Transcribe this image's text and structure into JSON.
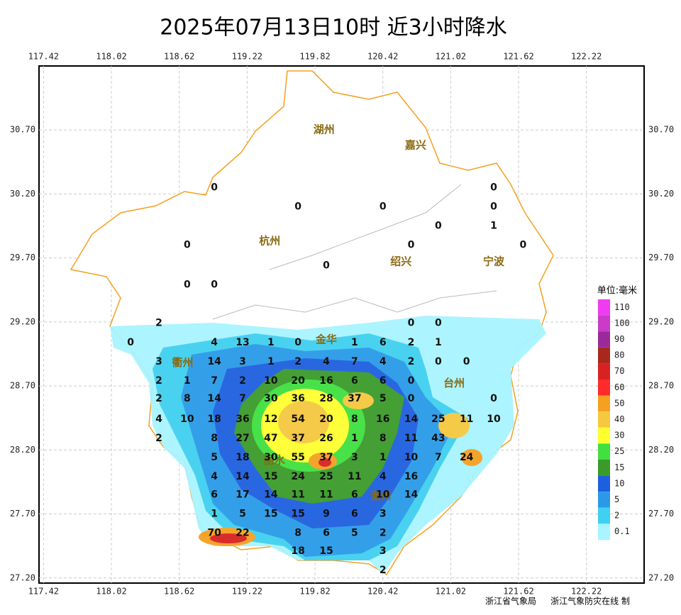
{
  "title": "2025年07月13日10时  近3小时降水",
  "xlim": [
    117.38,
    122.73
  ],
  "ylim": [
    27.16,
    31.2
  ],
  "xticks": [
    117.42,
    118.02,
    118.62,
    119.22,
    119.82,
    120.42,
    121.02,
    121.62,
    122.22
  ],
  "yticks": [
    {
      "value": 30.7,
      "label": "30.70"
    },
    {
      "value": 30.2,
      "label": "30.20"
    },
    {
      "value": 29.7,
      "label": "29.70"
    },
    {
      "value": 29.2,
      "label": "29.20"
    },
    {
      "value": 28.7,
      "label": "28.70"
    },
    {
      "value": 28.2,
      "label": "28.20"
    },
    {
      "value": 27.7,
      "label": "27.70"
    },
    {
      "value": 27.2,
      "label": "27.20"
    }
  ],
  "cities": [
    {
      "name": "湖州",
      "lon": 119.9,
      "lat": 30.7
    },
    {
      "name": "嘉兴",
      "lon": 120.71,
      "lat": 30.58
    },
    {
      "name": "杭州",
      "lon": 119.42,
      "lat": 29.83
    },
    {
      "name": "绍兴",
      "lon": 120.58,
      "lat": 29.67
    },
    {
      "name": "宁波",
      "lon": 121.4,
      "lat": 29.67
    },
    {
      "name": "金华",
      "lon": 119.92,
      "lat": 29.06
    },
    {
      "name": "衢州",
      "lon": 118.65,
      "lat": 28.88
    },
    {
      "name": "台州",
      "lon": 121.05,
      "lat": 28.72
    },
    {
      "name": "丽水",
      "lon": 119.46,
      "lat": 28.12
    },
    {
      "name": "温州",
      "lon": 120.4,
      "lat": 27.84
    }
  ],
  "stations": [
    {
      "lon": 118.93,
      "lat": 30.25,
      "value": 0
    },
    {
      "lon": 121.4,
      "lat": 30.25,
      "value": 0
    },
    {
      "lon": 119.67,
      "lat": 30.1,
      "value": 0
    },
    {
      "lon": 120.42,
      "lat": 30.1,
      "value": 0
    },
    {
      "lon": 121.4,
      "lat": 30.1,
      "value": 0
    },
    {
      "lon": 120.91,
      "lat": 29.95,
      "value": 0
    },
    {
      "lon": 121.4,
      "lat": 29.95,
      "value": 1
    },
    {
      "lon": 118.69,
      "lat": 29.8,
      "value": 0
    },
    {
      "lon": 120.67,
      "lat": 29.8,
      "value": 0
    },
    {
      "lon": 121.66,
      "lat": 29.8,
      "value": 0
    },
    {
      "lon": 119.92,
      "lat": 29.64,
      "value": 0
    },
    {
      "lon": 118.69,
      "lat": 29.49,
      "value": 0
    },
    {
      "lon": 118.93,
      "lat": 29.49,
      "value": 0
    },
    {
      "lon": 118.44,
      "lat": 29.19,
      "value": 2
    },
    {
      "lon": 120.67,
      "lat": 29.19,
      "value": 0
    },
    {
      "lon": 120.91,
      "lat": 29.19,
      "value": 0
    },
    {
      "lon": 118.19,
      "lat": 29.04,
      "value": 0
    },
    {
      "lon": 118.93,
      "lat": 29.04,
      "value": 4
    },
    {
      "lon": 119.18,
      "lat": 29.04,
      "value": 13
    },
    {
      "lon": 119.43,
      "lat": 29.04,
      "value": 1
    },
    {
      "lon": 119.67,
      "lat": 29.04,
      "value": 0
    },
    {
      "lon": 120.17,
      "lat": 29.04,
      "value": 1
    },
    {
      "lon": 120.42,
      "lat": 29.04,
      "value": 6
    },
    {
      "lon": 120.67,
      "lat": 29.04,
      "value": 2
    },
    {
      "lon": 120.91,
      "lat": 29.04,
      "value": 1
    },
    {
      "lon": 118.44,
      "lat": 28.89,
      "value": 3
    },
    {
      "lon": 118.93,
      "lat": 28.89,
      "value": 14
    },
    {
      "lon": 119.18,
      "lat": 28.89,
      "value": 3
    },
    {
      "lon": 119.43,
      "lat": 28.89,
      "value": 1
    },
    {
      "lon": 119.67,
      "lat": 28.89,
      "value": 2
    },
    {
      "lon": 119.92,
      "lat": 28.89,
      "value": 4
    },
    {
      "lon": 120.17,
      "lat": 28.89,
      "value": 7
    },
    {
      "lon": 120.42,
      "lat": 28.89,
      "value": 4
    },
    {
      "lon": 120.67,
      "lat": 28.89,
      "value": 2
    },
    {
      "lon": 120.91,
      "lat": 28.89,
      "value": 0
    },
    {
      "lon": 121.16,
      "lat": 28.89,
      "value": 0
    },
    {
      "lon": 118.44,
      "lat": 28.74,
      "value": 2
    },
    {
      "lon": 118.69,
      "lat": 28.74,
      "value": 1
    },
    {
      "lon": 118.93,
      "lat": 28.74,
      "value": 7
    },
    {
      "lon": 119.18,
      "lat": 28.74,
      "value": 2
    },
    {
      "lon": 119.43,
      "lat": 28.74,
      "value": 10
    },
    {
      "lon": 119.67,
      "lat": 28.74,
      "value": 20
    },
    {
      "lon": 119.92,
      "lat": 28.74,
      "value": 16
    },
    {
      "lon": 120.17,
      "lat": 28.74,
      "value": 6
    },
    {
      "lon": 120.42,
      "lat": 28.74,
      "value": 6
    },
    {
      "lon": 120.67,
      "lat": 28.74,
      "value": 0
    },
    {
      "lon": 118.44,
      "lat": 28.6,
      "value": 2
    },
    {
      "lon": 118.69,
      "lat": 28.6,
      "value": 8
    },
    {
      "lon": 118.93,
      "lat": 28.6,
      "value": 14
    },
    {
      "lon": 119.18,
      "lat": 28.6,
      "value": 7
    },
    {
      "lon": 119.43,
      "lat": 28.6,
      "value": 30
    },
    {
      "lon": 119.67,
      "lat": 28.6,
      "value": 36
    },
    {
      "lon": 119.92,
      "lat": 28.6,
      "value": 28
    },
    {
      "lon": 120.17,
      "lat": 28.6,
      "value": 37
    },
    {
      "lon": 120.42,
      "lat": 28.6,
      "value": 5
    },
    {
      "lon": 120.67,
      "lat": 28.6,
      "value": 0
    },
    {
      "lon": 121.4,
      "lat": 28.6,
      "value": 0
    },
    {
      "lon": 118.44,
      "lat": 28.44,
      "value": 4
    },
    {
      "lon": 118.69,
      "lat": 28.44,
      "value": 10
    },
    {
      "lon": 118.93,
      "lat": 28.44,
      "value": 18
    },
    {
      "lon": 119.18,
      "lat": 28.44,
      "value": 36
    },
    {
      "lon": 119.43,
      "lat": 28.44,
      "value": 12
    },
    {
      "lon": 119.67,
      "lat": 28.44,
      "value": 54
    },
    {
      "lon": 119.92,
      "lat": 28.44,
      "value": 20
    },
    {
      "lon": 120.17,
      "lat": 28.44,
      "value": 8
    },
    {
      "lon": 120.42,
      "lat": 28.44,
      "value": 16
    },
    {
      "lon": 120.67,
      "lat": 28.44,
      "value": 14
    },
    {
      "lon": 120.91,
      "lat": 28.44,
      "value": 25
    },
    {
      "lon": 121.16,
      "lat": 28.44,
      "value": 11
    },
    {
      "lon": 121.4,
      "lat": 28.44,
      "value": 10
    },
    {
      "lon": 118.44,
      "lat": 28.29,
      "value": 2
    },
    {
      "lon": 118.93,
      "lat": 28.29,
      "value": 8
    },
    {
      "lon": 119.18,
      "lat": 28.29,
      "value": 27
    },
    {
      "lon": 119.43,
      "lat": 28.29,
      "value": 47
    },
    {
      "lon": 119.67,
      "lat": 28.29,
      "value": 37
    },
    {
      "lon": 119.92,
      "lat": 28.29,
      "value": 26
    },
    {
      "lon": 120.17,
      "lat": 28.29,
      "value": 1
    },
    {
      "lon": 120.42,
      "lat": 28.29,
      "value": 8
    },
    {
      "lon": 120.67,
      "lat": 28.29,
      "value": 11
    },
    {
      "lon": 120.91,
      "lat": 28.29,
      "value": 43
    },
    {
      "lon": 118.93,
      "lat": 28.14,
      "value": 5
    },
    {
      "lon": 119.18,
      "lat": 28.14,
      "value": 18
    },
    {
      "lon": 119.43,
      "lat": 28.14,
      "value": 30
    },
    {
      "lon": 119.67,
      "lat": 28.14,
      "value": 55
    },
    {
      "lon": 119.92,
      "lat": 28.14,
      "value": 37
    },
    {
      "lon": 120.17,
      "lat": 28.14,
      "value": 3
    },
    {
      "lon": 120.42,
      "lat": 28.14,
      "value": 1
    },
    {
      "lon": 120.67,
      "lat": 28.14,
      "value": 10
    },
    {
      "lon": 120.91,
      "lat": 28.14,
      "value": 7
    },
    {
      "lon": 121.16,
      "lat": 28.14,
      "value": 24
    },
    {
      "lon": 118.93,
      "lat": 27.99,
      "value": 4
    },
    {
      "lon": 119.18,
      "lat": 27.99,
      "value": 14
    },
    {
      "lon": 119.43,
      "lat": 27.99,
      "value": 15
    },
    {
      "lon": 119.67,
      "lat": 27.99,
      "value": 24
    },
    {
      "lon": 119.92,
      "lat": 27.99,
      "value": 25
    },
    {
      "lon": 120.17,
      "lat": 27.99,
      "value": 11
    },
    {
      "lon": 120.42,
      "lat": 27.99,
      "value": 4
    },
    {
      "lon": 120.67,
      "lat": 27.99,
      "value": 16
    },
    {
      "lon": 118.93,
      "lat": 27.85,
      "value": 6
    },
    {
      "lon": 119.18,
      "lat": 27.85,
      "value": 17
    },
    {
      "lon": 119.43,
      "lat": 27.85,
      "value": 14
    },
    {
      "lon": 119.67,
      "lat": 27.85,
      "value": 11
    },
    {
      "lon": 119.92,
      "lat": 27.85,
      "value": 11
    },
    {
      "lon": 120.17,
      "lat": 27.85,
      "value": 6
    },
    {
      "lon": 120.42,
      "lat": 27.85,
      "value": 10
    },
    {
      "lon": 120.67,
      "lat": 27.85,
      "value": 14
    },
    {
      "lon": 118.93,
      "lat": 27.7,
      "value": 1
    },
    {
      "lon": 119.18,
      "lat": 27.7,
      "value": 5
    },
    {
      "lon": 119.43,
      "lat": 27.7,
      "value": 15
    },
    {
      "lon": 119.67,
      "lat": 27.7,
      "value": 15
    },
    {
      "lon": 119.92,
      "lat": 27.7,
      "value": 9
    },
    {
      "lon": 120.17,
      "lat": 27.7,
      "value": 6
    },
    {
      "lon": 120.42,
      "lat": 27.7,
      "value": 3
    },
    {
      "lon": 118.93,
      "lat": 27.55,
      "value": 70
    },
    {
      "lon": 119.18,
      "lat": 27.55,
      "value": 22
    },
    {
      "lon": 119.67,
      "lat": 27.55,
      "value": 8
    },
    {
      "lon": 119.92,
      "lat": 27.55,
      "value": 6
    },
    {
      "lon": 120.17,
      "lat": 27.55,
      "value": 5
    },
    {
      "lon": 120.42,
      "lat": 27.55,
      "value": 2
    },
    {
      "lon": 119.67,
      "lat": 27.41,
      "value": 18
    },
    {
      "lon": 119.92,
      "lat": 27.41,
      "value": 15
    },
    {
      "lon": 120.42,
      "lat": 27.41,
      "value": 3
    },
    {
      "lon": 120.42,
      "lat": 27.26,
      "value": 2
    }
  ],
  "legend": {
    "title": "单位:毫米",
    "items": [
      {
        "label": 110,
        "color": "#f03cf0"
      },
      {
        "label": 100,
        "color": "#c83cc8"
      },
      {
        "label": 90,
        "color": "#9a2a9a"
      },
      {
        "label": 80,
        "color": "#a8281e"
      },
      {
        "label": 70,
        "color": "#d82222"
      },
      {
        "label": 60,
        "color": "#ff2a2a"
      },
      {
        "label": 50,
        "color": "#f5a020"
      },
      {
        "label": 40,
        "color": "#f5c840"
      },
      {
        "label": 30,
        "color": "#ffff30"
      },
      {
        "label": 25,
        "color": "#40e040"
      },
      {
        "label": 15,
        "color": "#3a9a2a"
      },
      {
        "label": 10,
        "color": "#1e5fe0"
      },
      {
        "label": 5,
        "color": "#2a9ae8"
      },
      {
        "label": 2,
        "color": "#40d0f0"
      },
      {
        "label": 0.1,
        "color": "#a8f4ff"
      }
    ]
  },
  "footer": [
    "浙江省气象局",
    "浙江气象防灾在线 制"
  ]
}
